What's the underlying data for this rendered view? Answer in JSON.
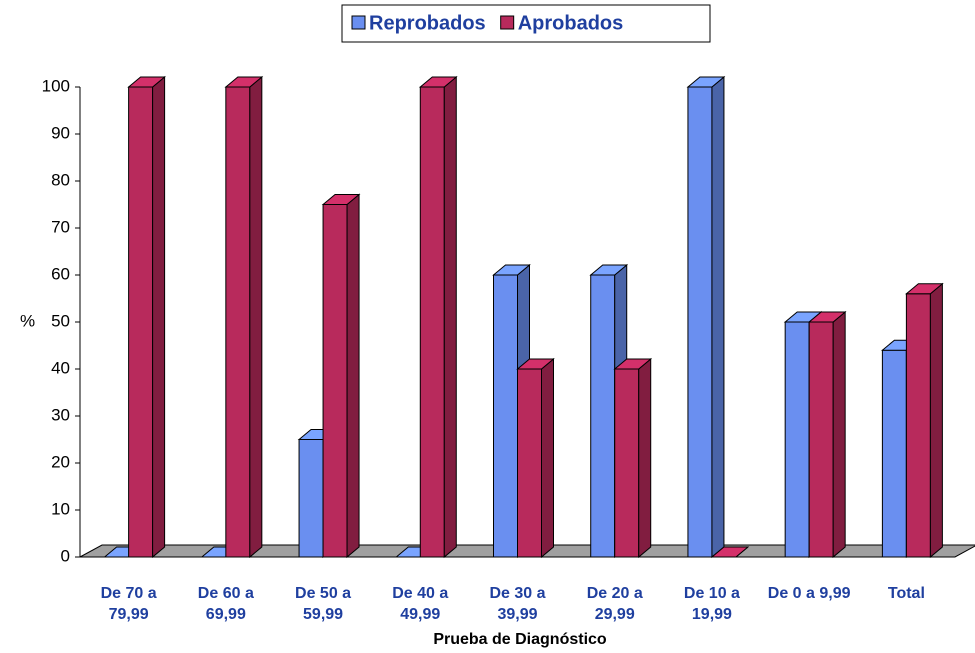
{
  "chart_data": {
    "type": "bar3d",
    "categories": [
      "De 70 a 79,99",
      "De 60 a 69,99",
      "De 50 a 59,99",
      "De 40 a 49,99",
      "De 30 a 39,99",
      "De 20 a 29,99",
      "De 10 a 19,99",
      "De 0 a 9,99",
      "Total"
    ],
    "series": [
      {
        "name": "Reprobados",
        "color": "#6a8ff0",
        "values": [
          0,
          0,
          25,
          0,
          60,
          60,
          100,
          50,
          44
        ]
      },
      {
        "name": "Aprobados",
        "color": "#b82a5c",
        "values": [
          100,
          100,
          75,
          100,
          40,
          40,
          0,
          50,
          56
        ]
      }
    ],
    "x_label": "Prueba de Diagnóstico",
    "y_label": "%",
    "ylim": [
      0,
      100
    ],
    "yticks": [
      0,
      10,
      20,
      30,
      40,
      50,
      60,
      70,
      80,
      90,
      100
    ],
    "legend": "top"
  }
}
